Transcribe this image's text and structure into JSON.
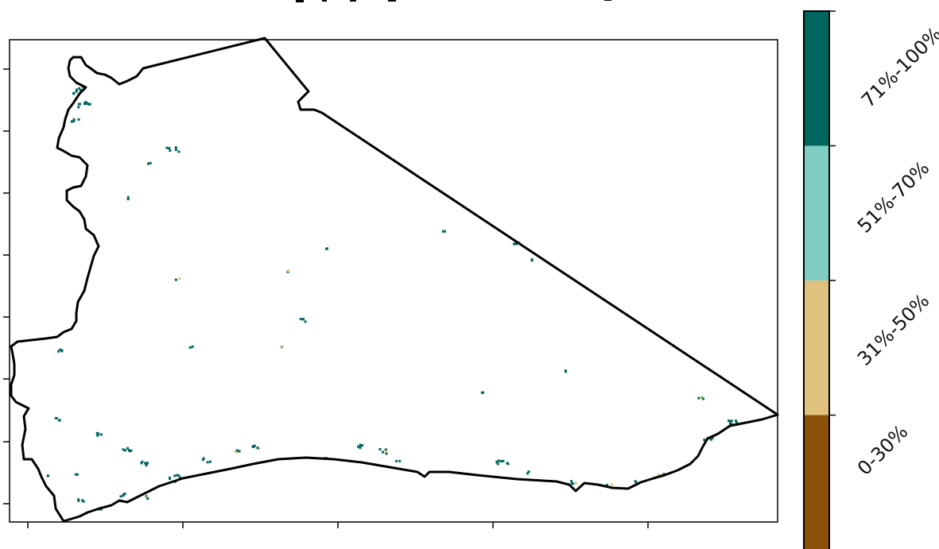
{
  "map": {
    "colorbar": {
      "classes": [
        {
          "label": "0-30%",
          "color": "#8c510a"
        },
        {
          "label": "31%-50%",
          "color": "#dfc27d"
        },
        {
          "label": "51%-70%",
          "color": "#80cdc1"
        },
        {
          "label": "71%-100%",
          "color": "#01665e"
        }
      ]
    }
  }
}
